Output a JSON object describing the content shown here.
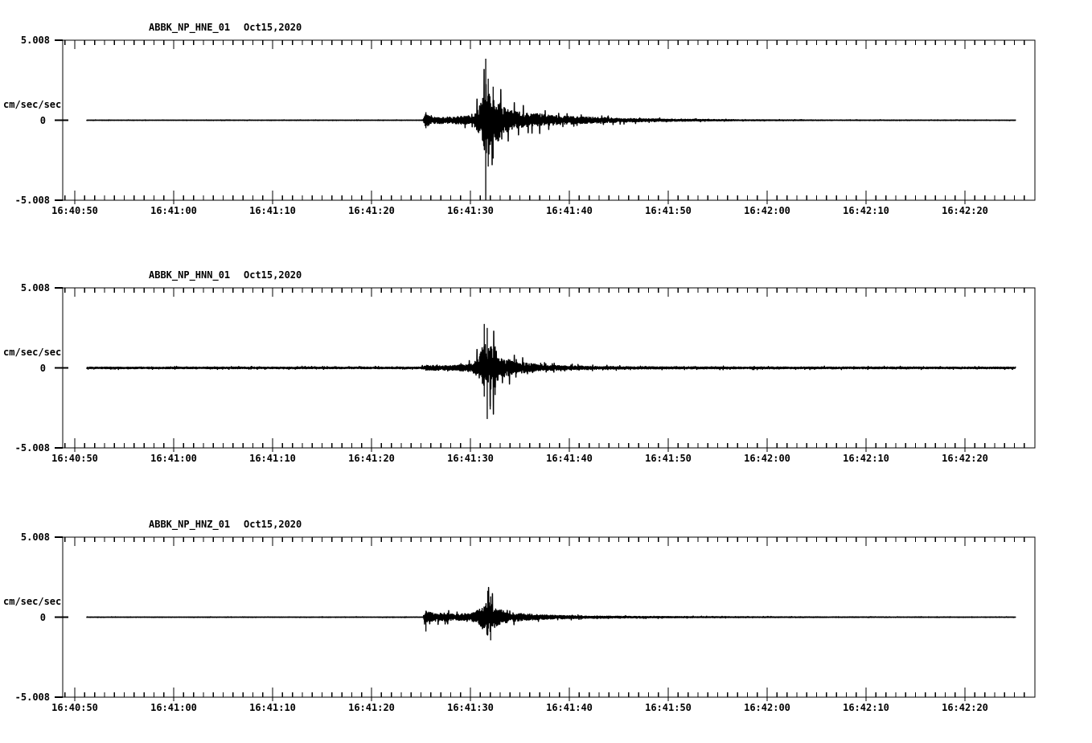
{
  "page": {
    "background": "#ffffff",
    "ink_color": "#000000",
    "description": "Three-channel strong-motion seismogram record display for station ABBK"
  },
  "chart_data": [
    {
      "type": "line",
      "title": "ABBK_NP_HNE_01",
      "date_label": "Oct15,2020",
      "ylabel": "cm/sec/sec",
      "yticks": [
        "5.008",
        "0",
        "-5.008"
      ],
      "ylim": [
        -5.008,
        5.008
      ],
      "xticklabels": [
        "16:40:50",
        "16:41:00",
        "16:41:10",
        "16:41:20",
        "16:41:30",
        "16:41:40",
        "16:41:50",
        "16:42:00",
        "16:42:10",
        "16:42:20"
      ],
      "x_major_tick_s": 10,
      "x_minor_tick_s": 1,
      "trace_window_s": [
        1.2,
        95.1
      ],
      "grid": false,
      "noise_seed": 11,
      "envelope": [
        [
          0,
          0.012
        ],
        [
          35.2,
          0.012
        ],
        [
          35.5,
          0.45
        ],
        [
          36.2,
          0.22
        ],
        [
          38,
          0.2
        ],
        [
          40.3,
          0.3
        ],
        [
          40.9,
          0.9
        ],
        [
          41.3,
          1.8
        ],
        [
          41.6,
          2.3
        ],
        [
          42,
          1.7
        ],
        [
          42.4,
          1.2
        ],
        [
          42.8,
          1.45
        ],
        [
          43.3,
          0.9
        ],
        [
          43.8,
          0.7
        ],
        [
          44.4,
          0.55
        ],
        [
          45.2,
          0.5
        ],
        [
          46,
          0.4
        ],
        [
          46.8,
          0.45
        ],
        [
          47.6,
          0.33
        ],
        [
          49,
          0.28
        ],
        [
          51,
          0.22
        ],
        [
          53,
          0.18
        ],
        [
          55,
          0.13
        ],
        [
          57,
          0.1
        ],
        [
          59,
          0.08
        ],
        [
          62,
          0.055
        ],
        [
          65,
          0.04
        ],
        [
          68,
          0.03
        ],
        [
          72,
          0.022
        ],
        [
          78,
          0.015
        ],
        [
          95,
          0.012
        ]
      ],
      "spikes": [
        [
          35.5,
          0.5,
          -0.5
        ],
        [
          41.55,
          3.85,
          -5.008
        ],
        [
          41.8,
          2.6,
          -2.9
        ],
        [
          42.3,
          2.1,
          -2.4
        ]
      ]
    },
    {
      "type": "line",
      "title": "ABBK_NP_HNN_01",
      "date_label": "Oct15,2020",
      "ylabel": "cm/sec/sec",
      "yticks": [
        "5.008",
        "0",
        "-5.008"
      ],
      "ylim": [
        -5.008,
        5.008
      ],
      "xticklabels": [
        "16:40:50",
        "16:41:00",
        "16:41:10",
        "16:41:20",
        "16:41:30",
        "16:41:40",
        "16:41:50",
        "16:42:00",
        "16:42:10",
        "16:42:20"
      ],
      "x_major_tick_s": 10,
      "x_minor_tick_s": 1,
      "trace_window_s": [
        1.2,
        95.1
      ],
      "grid": false,
      "noise_seed": 22,
      "envelope": [
        [
          0,
          0.05
        ],
        [
          35,
          0.05
        ],
        [
          35.5,
          0.16
        ],
        [
          38,
          0.14
        ],
        [
          40.3,
          0.25
        ],
        [
          40.9,
          0.8
        ],
        [
          41.4,
          1.6
        ],
        [
          41.9,
          1.2
        ],
        [
          42.3,
          1.5
        ],
        [
          42.8,
          0.9
        ],
        [
          43.3,
          0.6
        ],
        [
          44,
          0.5
        ],
        [
          45,
          0.35
        ],
        [
          46,
          0.28
        ],
        [
          47,
          0.2
        ],
        [
          48,
          0.17
        ],
        [
          50,
          0.12
        ],
        [
          53,
          0.09
        ],
        [
          56,
          0.075
        ],
        [
          60,
          0.065
        ],
        [
          70,
          0.055
        ],
        [
          95,
          0.05
        ]
      ],
      "spikes": [
        [
          41.4,
          2.75,
          -1.8
        ],
        [
          41.7,
          2.5,
          -3.2
        ],
        [
          42.0,
          1.0,
          -2.6
        ],
        [
          42.5,
          1.35,
          -1.7
        ]
      ]
    },
    {
      "type": "line",
      "title": "ABBK_NP_HNZ_01",
      "date_label": "Oct15,2020",
      "ylabel": "cm/sec/sec",
      "yticks": [
        "5.008",
        "0",
        "-5.008"
      ],
      "ylim": [
        -5.008,
        5.008
      ],
      "xticklabels": [
        "16:40:50",
        "16:41:00",
        "16:41:10",
        "16:41:20",
        "16:41:30",
        "16:41:40",
        "16:41:50",
        "16:42:00",
        "16:42:10",
        "16:42:20"
      ],
      "x_major_tick_s": 10,
      "x_minor_tick_s": 1,
      "trace_window_s": [
        1.2,
        95.1
      ],
      "grid": false,
      "noise_seed": 33,
      "envelope": [
        [
          0,
          0.012
        ],
        [
          35.2,
          0.012
        ],
        [
          35.45,
          0.4
        ],
        [
          35.9,
          0.3
        ],
        [
          36.6,
          0.24
        ],
        [
          37.6,
          0.26
        ],
        [
          38.6,
          0.2
        ],
        [
          39.6,
          0.22
        ],
        [
          40.4,
          0.3
        ],
        [
          40.9,
          0.5
        ],
        [
          41.4,
          0.85
        ],
        [
          41.9,
          1.0
        ],
        [
          42.3,
          0.8
        ],
        [
          42.8,
          0.55
        ],
        [
          43.5,
          0.38
        ],
        [
          44.5,
          0.27
        ],
        [
          45.5,
          0.2
        ],
        [
          47,
          0.15
        ],
        [
          49,
          0.11
        ],
        [
          51,
          0.085
        ],
        [
          54,
          0.06
        ],
        [
          57,
          0.045
        ],
        [
          60,
          0.038
        ],
        [
          64,
          0.03
        ],
        [
          68,
          0.025
        ],
        [
          73,
          0.02
        ],
        [
          80,
          0.015
        ],
        [
          95,
          0.012
        ]
      ],
      "spikes": [
        [
          35.5,
          0.4,
          -0.9
        ],
        [
          41.75,
          1.65,
          -1.1
        ],
        [
          42.05,
          1.3,
          -1.45
        ]
      ]
    }
  ]
}
